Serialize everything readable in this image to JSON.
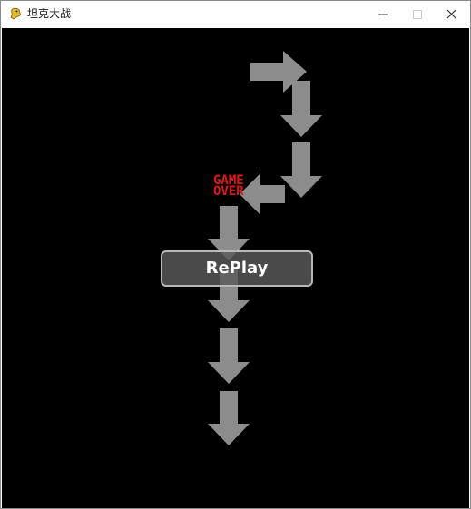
{
  "window": {
    "title": "坦克大战",
    "icon": "pygame-snake-icon",
    "controls": [
      "minimize-icon",
      "maximize-icon",
      "close-icon"
    ]
  },
  "game": {
    "background": "#000000",
    "arrow_color": "#8c8c8c",
    "gameover_line1": "GAME",
    "gameover_line2": "OVER",
    "gameover_color": "#e01818",
    "replay_label": "RePlay"
  }
}
